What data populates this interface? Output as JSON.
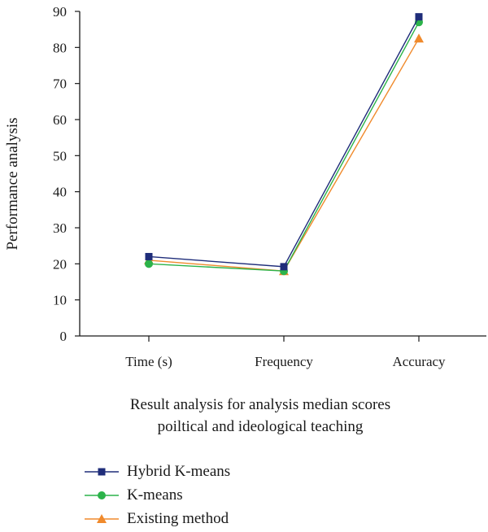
{
  "chart_data": {
    "type": "line",
    "categories": [
      "Time (s)",
      "Frequency",
      "Accuracy"
    ],
    "series": [
      {
        "name": "Hybrid K-means",
        "values": [
          22,
          19.2,
          88.5
        ],
        "color": "#1f2d7a",
        "marker": "square"
      },
      {
        "name": "K-means",
        "values": [
          20,
          18,
          87
        ],
        "color": "#2cb34a",
        "marker": "circle"
      },
      {
        "name": "Existing method",
        "values": [
          21,
          18,
          82.5
        ],
        "color": "#f08a2c",
        "marker": "triangle"
      }
    ],
    "ylabel": "Performance analysis",
    "xlabel": "Result analysis for analysis median scores poiltical and ideological teaching",
    "xlabel_lines": [
      "Result analysis for analysis median scores",
      "poiltical and ideological teaching"
    ],
    "ylim": [
      0,
      90
    ],
    "yticks": [
      0,
      10,
      20,
      30,
      40,
      50,
      60,
      70,
      80,
      90
    ],
    "grid": false,
    "legend": "bottom-left"
  }
}
